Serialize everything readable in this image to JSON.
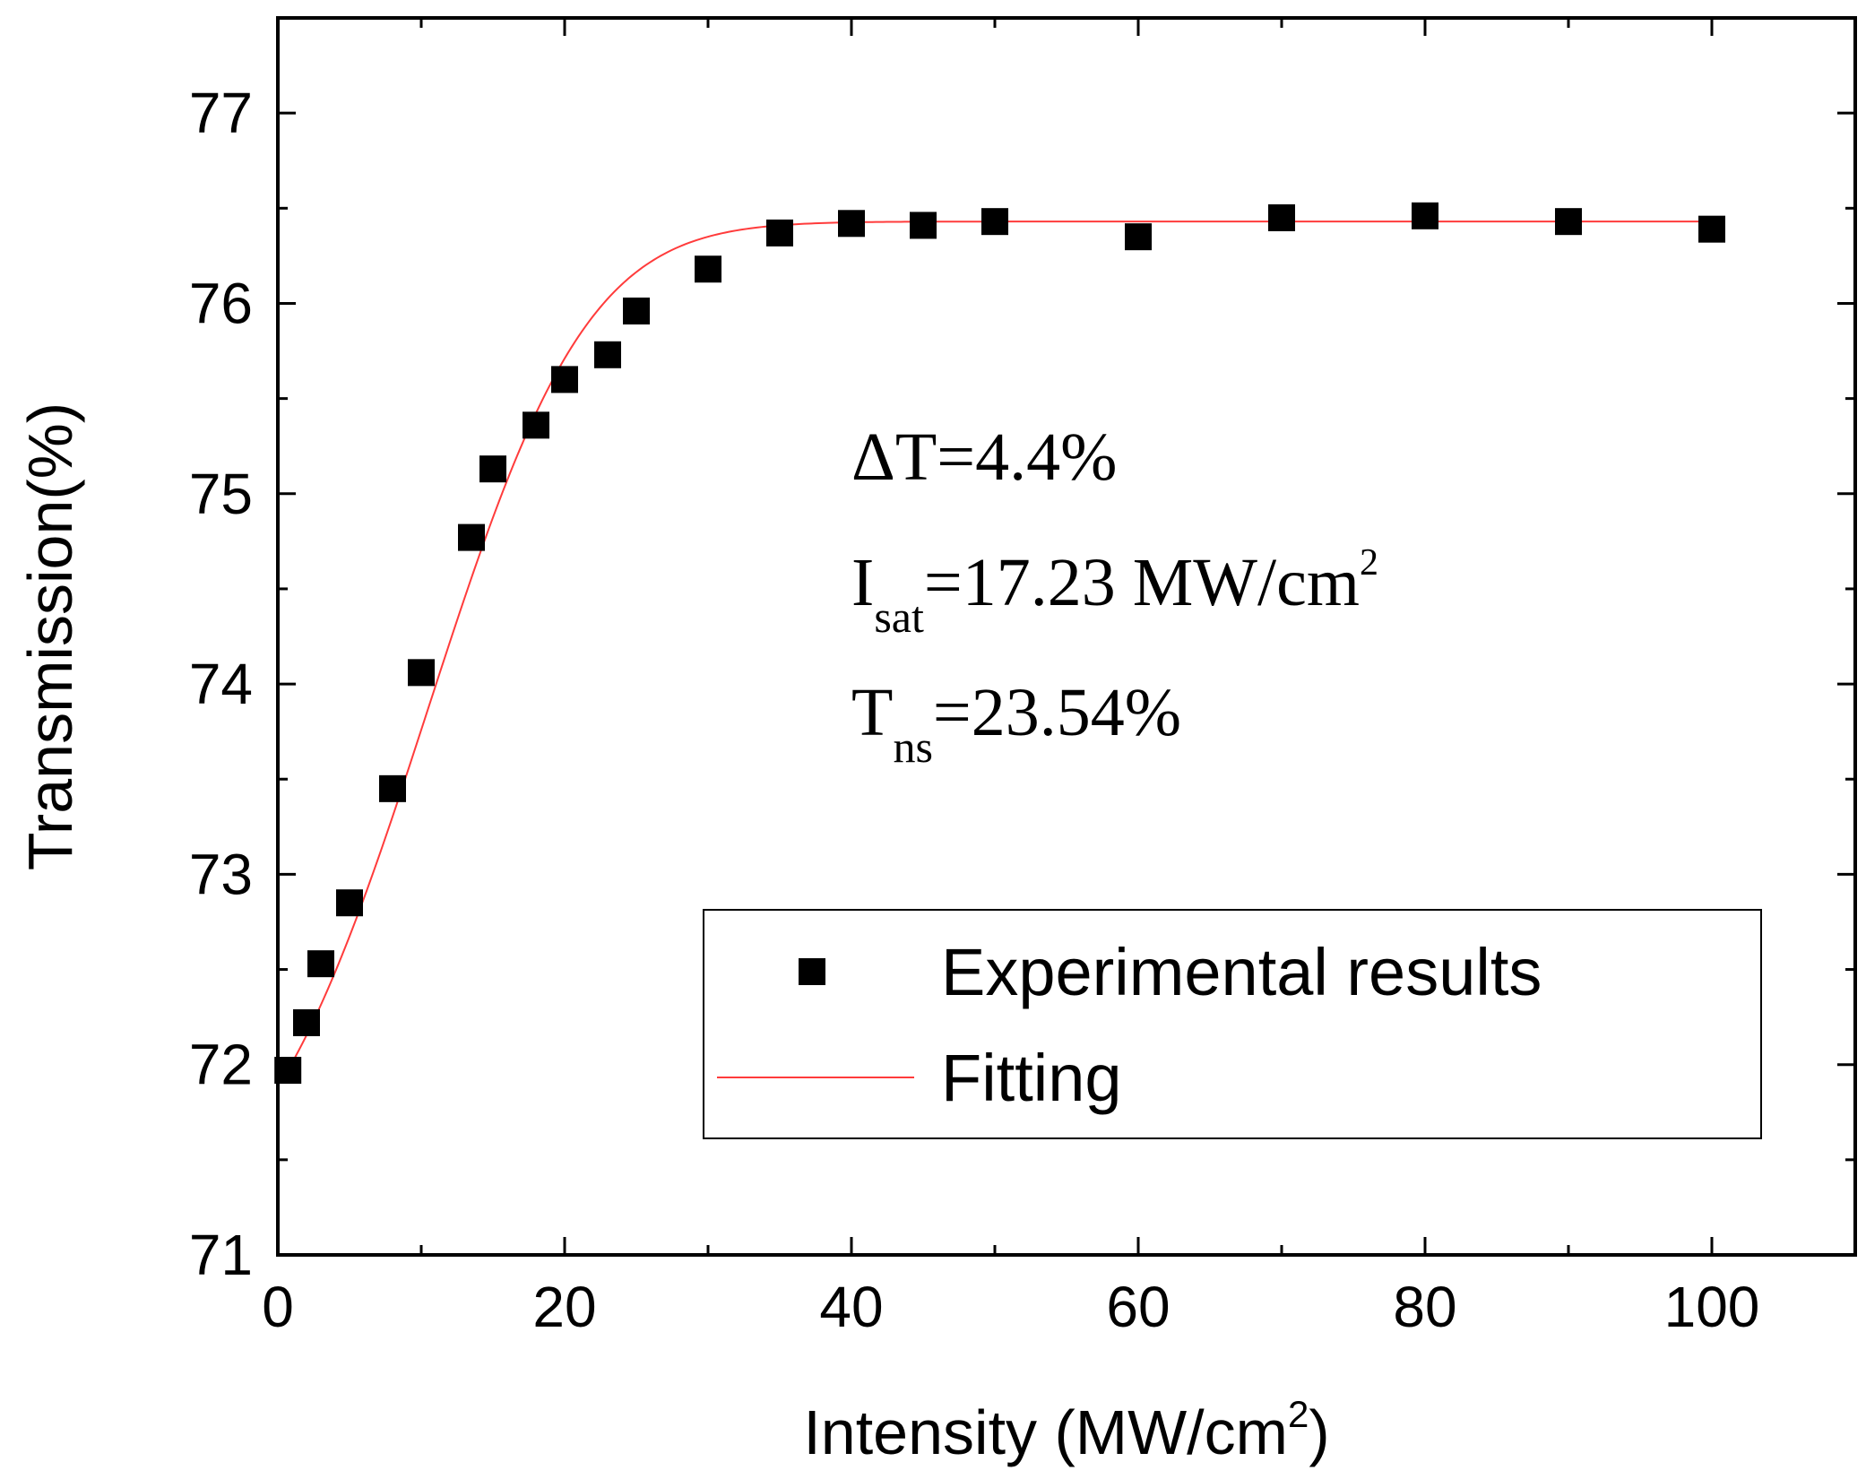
{
  "chart_data": {
    "type": "scatter",
    "title": "",
    "xlabel": "Intensity (MW/cm",
    "xlabel_sup": "2",
    "xlabel_close": ")",
    "ylabel": "Transmission(%)",
    "xlim": [
      0,
      110
    ],
    "ylim": [
      71,
      77.5
    ],
    "x_ticks": [
      0,
      20,
      40,
      60,
      80,
      100
    ],
    "y_ticks": [
      71,
      72,
      73,
      74,
      75,
      76,
      77
    ],
    "grid": false,
    "series": [
      {
        "name": "Experimental results",
        "kind": "scatter",
        "marker": "square",
        "color": "#000000",
        "x": [
          0.7,
          2,
          3,
          5,
          8,
          10,
          13.5,
          15,
          18,
          20,
          23,
          25,
          30,
          35,
          40,
          45,
          50,
          60,
          70,
          80,
          90,
          100
        ],
        "y": [
          71.97,
          72.22,
          72.53,
          72.85,
          73.45,
          74.06,
          74.77,
          75.13,
          75.36,
          75.6,
          75.73,
          75.96,
          76.18,
          76.37,
          76.42,
          76.41,
          76.43,
          76.35,
          76.45,
          76.46,
          76.43,
          76.39
        ]
      },
      {
        "name": "Fitting",
        "kind": "line",
        "color": "#ff3b3b",
        "model": "saturable absorption fit",
        "params": {
          "T0": 71.97,
          "Tmax": 76.43,
          "width": 18.6
        }
      }
    ],
    "legend": {
      "position": "lower-right",
      "entries": [
        "Experimental results",
        "Fitting"
      ]
    },
    "annotations": {
      "delta_t": "ΔT=4.4%",
      "isat_main": "I",
      "isat_sub": "sat",
      "isat_value": "=17.23 MW/cm",
      "isat_sup": "2",
      "tns_main": "T",
      "tns_sub": "ns",
      "tns_value": "=23.54%"
    }
  }
}
